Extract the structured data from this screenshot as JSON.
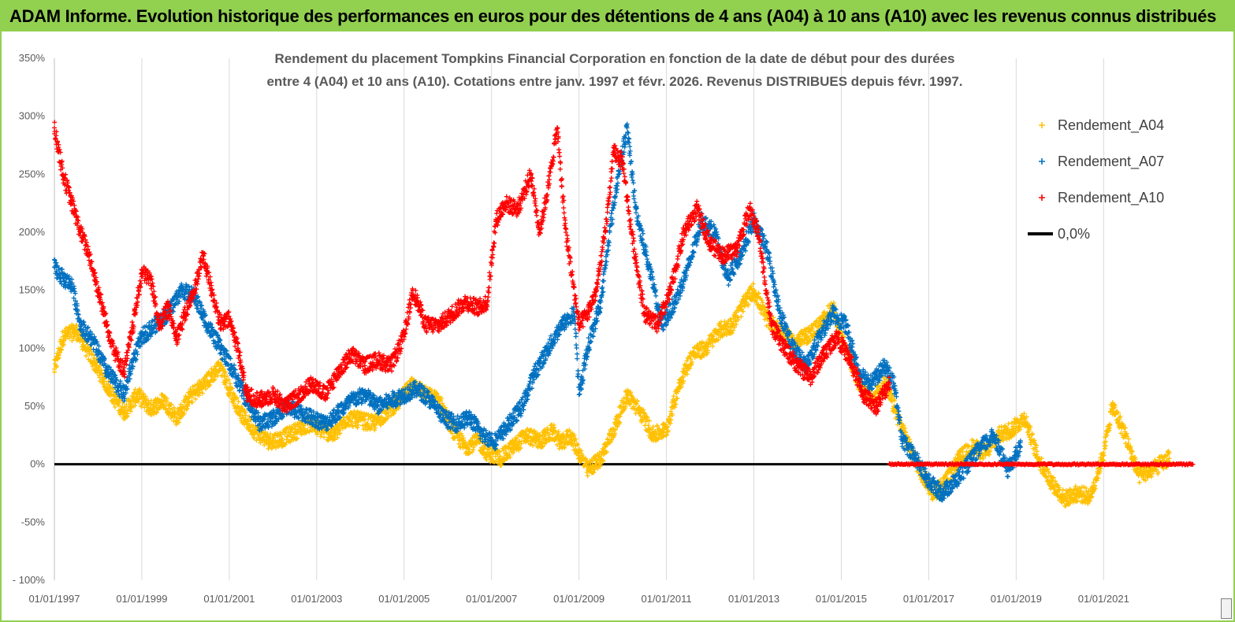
{
  "banner": {
    "title": "ADAM Informe. Evolution historique des performances en euros pour des détentions de 4 ans (A04) à 10 ans (A10) avec les revenus connus distribués",
    "color": "#92d050"
  },
  "chart_data": {
    "type": "scatter",
    "title_line1": "Rendement du placement Tompkins Financial Corporation en fonction de la date de début pour des durées",
    "title_line2": "entre 4 (A04) et 10 ans (A10). Cotations entre janv. 1997 et févr. 2026. Revenus DISTRIBUES depuis févr. 1997.",
    "ylim": [
      -100,
      350
    ],
    "y_ticks": [
      "- 100%",
      "-50%",
      "0%",
      "50%",
      "100%",
      "150%",
      "200%",
      "250%",
      "300%",
      "350%"
    ],
    "xlim": [
      1997.0,
      2023.05
    ],
    "x_ticks": [
      {
        "x": 1997.0,
        "label": "01/01/1997"
      },
      {
        "x": 1999.0,
        "label": "01/01/1999"
      },
      {
        "x": 2001.0,
        "label": "01/01/2001"
      },
      {
        "x": 2003.0,
        "label": "01/01/2003"
      },
      {
        "x": 2005.0,
        "label": "01/01/2005"
      },
      {
        "x": 2007.0,
        "label": "01/01/2007"
      },
      {
        "x": 2009.0,
        "label": "01/01/2009"
      },
      {
        "x": 2011.0,
        "label": "01/01/2011"
      },
      {
        "x": 2013.0,
        "label": "01/01/2013"
      },
      {
        "x": 2015.0,
        "label": "01/01/2015"
      },
      {
        "x": 2017.0,
        "label": "01/01/2017"
      },
      {
        "x": 2019.0,
        "label": "01/01/2019"
      },
      {
        "x": 2021.0,
        "label": "01/01/2021"
      }
    ],
    "grid": "vertical",
    "legend_position": "top-right",
    "series": [
      {
        "name": "Rendement_A04",
        "color": "#ffc000",
        "marker": "+",
        "x": [
          1997.0,
          1997.2,
          1997.5,
          1997.8,
          1998.1,
          1998.4,
          1998.6,
          1998.9,
          1999.2,
          1999.5,
          1999.8,
          2000.1,
          2000.5,
          2000.8,
          2001.0,
          2001.3,
          2001.6,
          2001.9,
          2002.2,
          2002.5,
          2002.8,
          2003.1,
          2003.4,
          2003.7,
          2004.0,
          2004.3,
          2004.6,
          2004.9,
          2005.2,
          2005.5,
          2005.8,
          2006.1,
          2006.4,
          2006.7,
          2006.9,
          2007.2,
          2007.5,
          2007.8,
          2008.1,
          2008.4,
          2008.6,
          2008.8,
          2009.0,
          2009.2,
          2009.5,
          2009.8,
          2010.1,
          2010.4,
          2010.7,
          2011.0,
          2011.3,
          2011.6,
          2011.9,
          2012.2,
          2012.5,
          2012.8,
          2013.0,
          2013.3,
          2013.6,
          2013.9,
          2014.2,
          2014.5,
          2014.8,
          2015.1,
          2015.4,
          2015.7,
          2016.0,
          2016.2,
          2016.5,
          2016.8,
          2017.1,
          2017.4,
          2017.7,
          2018.0,
          2018.3,
          2018.6,
          2018.9,
          2019.2,
          2019.5,
          2019.8,
          2020.1,
          2020.4,
          2020.7,
          2021.0,
          2021.2,
          2021.5,
          2021.8,
          2022.1,
          2022.5
        ],
        "y": [
          82,
          110,
          115,
          95,
          75,
          55,
          45,
          60,
          48,
          55,
          40,
          58,
          72,
          85,
          65,
          42,
          28,
          20,
          22,
          28,
          35,
          30,
          25,
          40,
          38,
          35,
          45,
          55,
          70,
          60,
          55,
          30,
          15,
          20,
          10,
          5,
          15,
          25,
          20,
          28,
          18,
          25,
          10,
          -5,
          5,
          30,
          60,
          45,
          25,
          30,
          70,
          95,
          100,
          115,
          120,
          140,
          150,
          125,
          115,
          105,
          110,
          120,
          135,
          100,
          70,
          55,
          70,
          50,
          20,
          -5,
          -25,
          -15,
          5,
          15,
          10,
          25,
          30,
          40,
          5,
          -15,
          -30,
          -25,
          -28,
          10,
          50,
          25,
          -10,
          -5,
          5
        ]
      },
      {
        "name": "Rendement_A07",
        "color": "#0070c0",
        "marker": "+",
        "x": [
          1997.0,
          1997.2,
          1997.4,
          1997.6,
          1997.9,
          1998.2,
          1998.4,
          1998.6,
          1998.8,
          1999.0,
          1999.3,
          1999.6,
          1999.9,
          2000.2,
          2000.5,
          2000.8,
          2001.1,
          2001.4,
          2001.7,
          2002.0,
          2002.3,
          2002.6,
          2002.9,
          2003.2,
          2003.5,
          2003.8,
          2004.1,
          2004.4,
          2004.7,
          2005.0,
          2005.3,
          2005.6,
          2005.9,
          2006.2,
          2006.5,
          2006.8,
          2007.1,
          2007.4,
          2007.7,
          2008.0,
          2008.3,
          2008.6,
          2008.9,
          2009.0,
          2009.2,
          2009.5,
          2009.7,
          2009.9,
          2010.1,
          2010.3,
          2010.6,
          2010.9,
          2011.2,
          2011.5,
          2011.8,
          2012.1,
          2012.4,
          2012.7,
          2013.0,
          2013.3,
          2013.6,
          2013.9,
          2014.2,
          2014.5,
          2014.8,
          2015.1,
          2015.4,
          2015.7,
          2016.0,
          2016.2,
          2016.4,
          2016.7,
          2017.0,
          2017.3,
          2017.6,
          2017.9,
          2018.2,
          2018.5,
          2018.8,
          2019.1
        ],
        "y": [
          170,
          160,
          155,
          120,
          105,
          80,
          70,
          60,
          90,
          110,
          120,
          130,
          150,
          145,
          120,
          100,
          80,
          55,
          35,
          40,
          50,
          45,
          40,
          35,
          45,
          55,
          60,
          50,
          55,
          60,
          65,
          55,
          40,
          35,
          40,
          25,
          20,
          35,
          50,
          80,
          100,
          120,
          130,
          60,
          100,
          140,
          200,
          250,
          290,
          220,
          170,
          120,
          140,
          170,
          210,
          200,
          160,
          180,
          210,
          185,
          130,
          100,
          85,
          110,
          130,
          120,
          80,
          70,
          85,
          70,
          20,
          5,
          -15,
          -25,
          -15,
          0,
          15,
          25,
          -5,
          15
        ]
      },
      {
        "name": "Rendement_A10",
        "color": "#ff0000",
        "marker": "+",
        "x": [
          1997.0,
          1997.1,
          1997.2,
          1997.4,
          1997.6,
          1997.8,
          1998.0,
          1998.2,
          1998.4,
          1998.6,
          1998.8,
          1999.0,
          1999.2,
          1999.4,
          1999.6,
          1999.8,
          2000.0,
          2000.2,
          2000.4,
          2000.6,
          2000.8,
          2001.0,
          2001.2,
          2001.4,
          2001.7,
          2002.0,
          2002.3,
          2002.6,
          2002.9,
          2003.2,
          2003.5,
          2003.8,
          2004.1,
          2004.4,
          2004.7,
          2005.0,
          2005.2,
          2005.5,
          2005.8,
          2006.1,
          2006.4,
          2006.7,
          2006.9,
          2007.1,
          2007.3,
          2007.6,
          2007.9,
          2008.1,
          2008.3,
          2008.5,
          2008.7,
          2009.0,
          2009.2,
          2009.4,
          2009.6,
          2009.8,
          2010.0,
          2010.2,
          2010.5,
          2010.8,
          2011.1,
          2011.4,
          2011.7,
          2012.0,
          2012.3,
          2012.6,
          2012.9,
          2013.1,
          2013.4,
          2013.7,
          2014.0,
          2014.3,
          2014.6,
          2014.9,
          2015.2,
          2015.5,
          2015.8,
          2016.1
        ],
        "y": [
          290,
          270,
          250,
          225,
          200,
          180,
          150,
          120,
          95,
          80,
          120,
          165,
          160,
          120,
          135,
          110,
          130,
          150,
          180,
          150,
          120,
          125,
          100,
          60,
          55,
          60,
          50,
          60,
          70,
          60,
          80,
          95,
          85,
          90,
          85,
          110,
          150,
          120,
          120,
          130,
          140,
          135,
          140,
          210,
          225,
          220,
          250,
          200,
          240,
          290,
          200,
          120,
          130,
          150,
          200,
          270,
          260,
          200,
          130,
          120,
          150,
          200,
          220,
          190,
          180,
          185,
          220,
          200,
          120,
          100,
          85,
          75,
          95,
          110,
          90,
          60,
          50,
          70
        ]
      },
      {
        "name": "0,0%",
        "color": "#000000",
        "marker": "line",
        "x": [
          1997.0,
          2023.05
        ],
        "y": [
          0,
          0
        ]
      }
    ],
    "a10_zero_segment": {
      "from": 2016.1,
      "to": 2023.05,
      "y": 0,
      "color": "#ff0000"
    }
  }
}
